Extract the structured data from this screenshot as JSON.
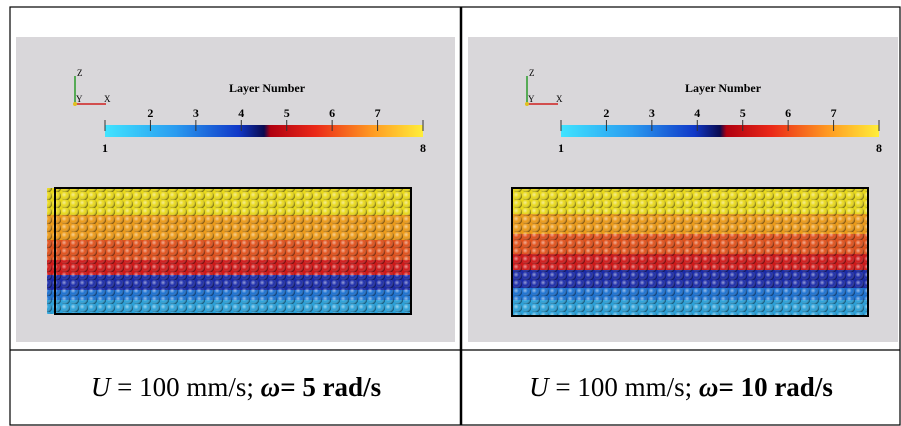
{
  "panels": [
    {
      "colorbar": {
        "title": "Layer Number",
        "lim": [
          1,
          8
        ],
        "ticks": [
          1,
          2,
          3,
          4,
          5,
          6,
          7,
          8
        ]
      },
      "axes": [
        "Z",
        "Y",
        "X"
      ],
      "caption": {
        "var": "U",
        "speed": " = 100 mm/s; ",
        "symbol": "ω",
        "rate": "= 5 rad/s"
      }
    },
    {
      "colorbar": {
        "title": "Layer Number",
        "lim": [
          1,
          8
        ],
        "ticks": [
          1,
          2,
          3,
          4,
          5,
          6,
          7,
          8
        ]
      },
      "axes": [
        "Z",
        "Y",
        "X"
      ],
      "caption": {
        "var": "U",
        "speed": " = 100 mm/s; ",
        "symbol": "ω",
        "rate": "= 10 rad/s"
      }
    }
  ]
}
